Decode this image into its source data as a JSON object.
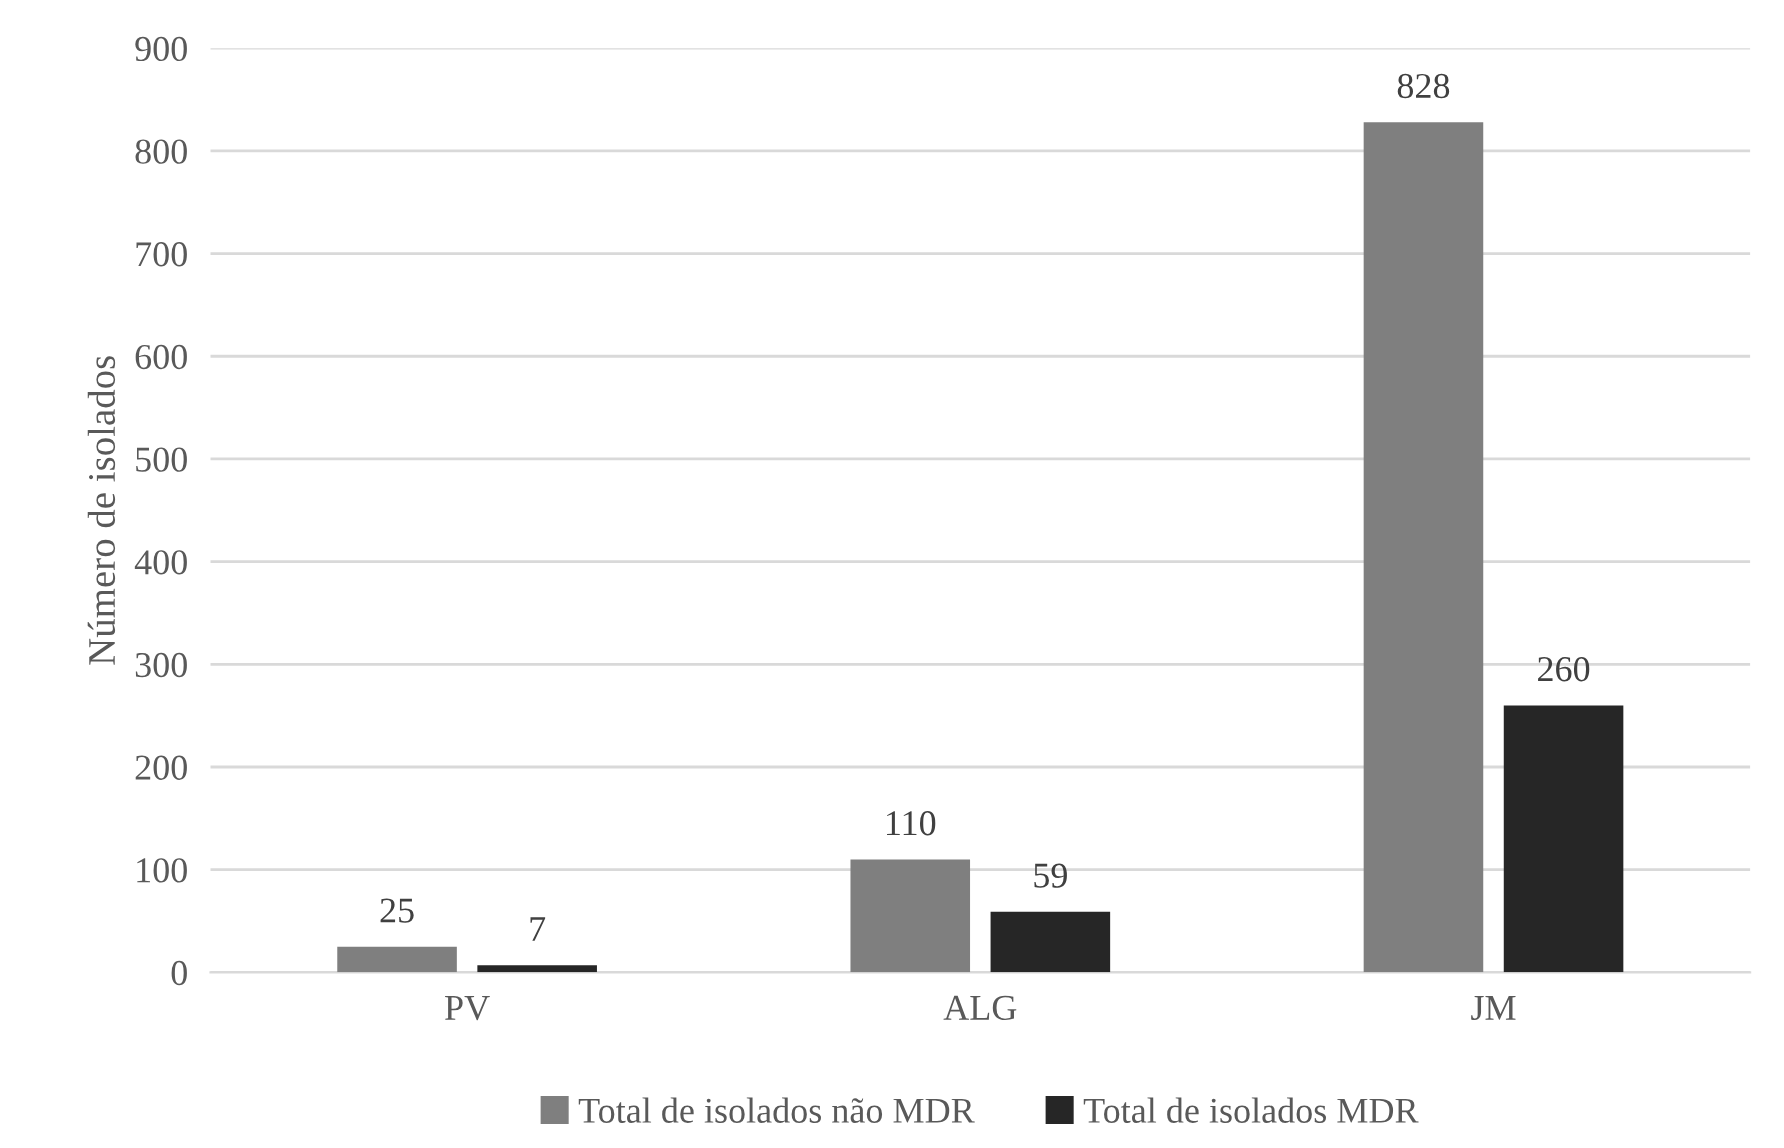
{
  "chart_data": {
    "type": "bar",
    "ylabel": "Número de isolados",
    "categories": [
      "PV",
      "ALG",
      "JM"
    ],
    "series": [
      {
        "name": "Total de isolados não MDR",
        "color": "#7f7f7f",
        "values": [
          25,
          110,
          828
        ]
      },
      {
        "name": "Total de isolados MDR",
        "color": "#262626",
        "values": [
          7,
          59,
          260
        ]
      }
    ],
    "ylim": [
      0,
      900
    ],
    "yticks": [
      0,
      100,
      200,
      300,
      400,
      500,
      600,
      700,
      800,
      900
    ],
    "grid": "y",
    "legend": "bottom",
    "data_labels": true
  }
}
